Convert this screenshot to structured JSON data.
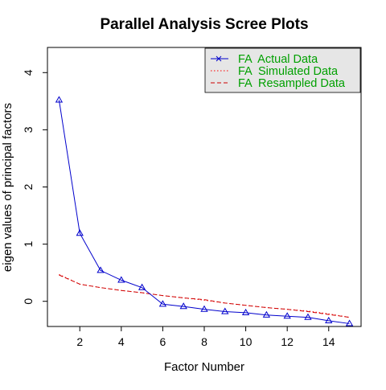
{
  "chart_data": {
    "type": "line",
    "title": "Parallel Analysis Scree Plots",
    "xlabel": "Factor Number",
    "ylabel": "eigen values of principal factors",
    "xlim": [
      0.44,
      15.56
    ],
    "ylim": [
      -0.44,
      4.44
    ],
    "xticks": [
      2,
      4,
      6,
      8,
      10,
      12,
      14
    ],
    "yticks": [
      0,
      1,
      2,
      3,
      4
    ],
    "grid": false,
    "legend_position": "top-right",
    "x": [
      1,
      2,
      3,
      4,
      5,
      6,
      7,
      8,
      9,
      10,
      11,
      12,
      13,
      14,
      15
    ],
    "series": [
      {
        "name": "FA  Actual Data",
        "color": "#0000cc",
        "line_style": "solid",
        "marker": "triangle",
        "legend_marker": "x",
        "values": [
          3.52,
          1.19,
          0.54,
          0.37,
          0.24,
          -0.05,
          -0.09,
          -0.14,
          -0.18,
          -0.2,
          -0.24,
          -0.26,
          -0.28,
          -0.34,
          -0.39
        ]
      },
      {
        "name": "FA  Simulated Data",
        "color": "#ff0000",
        "line_style": "dotted",
        "values": [
          0.47,
          0.3,
          0.24,
          0.19,
          0.15,
          0.1,
          0.06,
          0.02,
          -0.03,
          -0.07,
          -0.11,
          -0.14,
          -0.17,
          -0.22,
          -0.28
        ]
      },
      {
        "name": "FA  Resampled Data",
        "color": "#cc0000",
        "line_style": "dashed",
        "values": [
          0.46,
          0.3,
          0.24,
          0.19,
          0.15,
          0.1,
          0.06,
          0.03,
          -0.03,
          -0.07,
          -0.11,
          -0.14,
          -0.18,
          -0.23,
          -0.28
        ]
      }
    ],
    "legend_text_color": "#00a000",
    "legend_bg_color": "#e6e6e6"
  }
}
